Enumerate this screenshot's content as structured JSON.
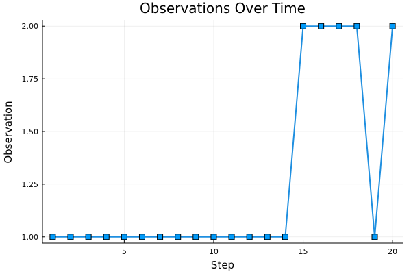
{
  "chart_data": {
    "type": "line",
    "title": "Observations Over Time",
    "xlabel": "Step",
    "ylabel": "Observation",
    "xlim": [
      0.43,
      20.57
    ],
    "ylim": [
      0.97,
      2.03
    ],
    "xticks": [
      5,
      10,
      15,
      20
    ],
    "xtick_labels": [
      "5",
      "10",
      "15",
      "20"
    ],
    "yticks": [
      1.0,
      1.25,
      1.5,
      1.75,
      2.0
    ],
    "ytick_labels": [
      "1.00",
      "1.25",
      "1.50",
      "1.75",
      "2.00"
    ],
    "grid": true,
    "legend": "none",
    "series": [
      {
        "x": [
          1,
          2,
          3,
          4,
          5,
          6,
          7,
          8,
          9,
          10,
          11,
          12,
          13,
          14,
          15,
          16,
          17,
          18,
          19,
          20
        ],
        "values": [
          1,
          1,
          1,
          1,
          1,
          1,
          1,
          1,
          1,
          1,
          1,
          1,
          1,
          1,
          2,
          2,
          2,
          2,
          1,
          2
        ],
        "color": "#009AFA",
        "line_color": "#1F8FE0",
        "marker": "square"
      }
    ]
  }
}
